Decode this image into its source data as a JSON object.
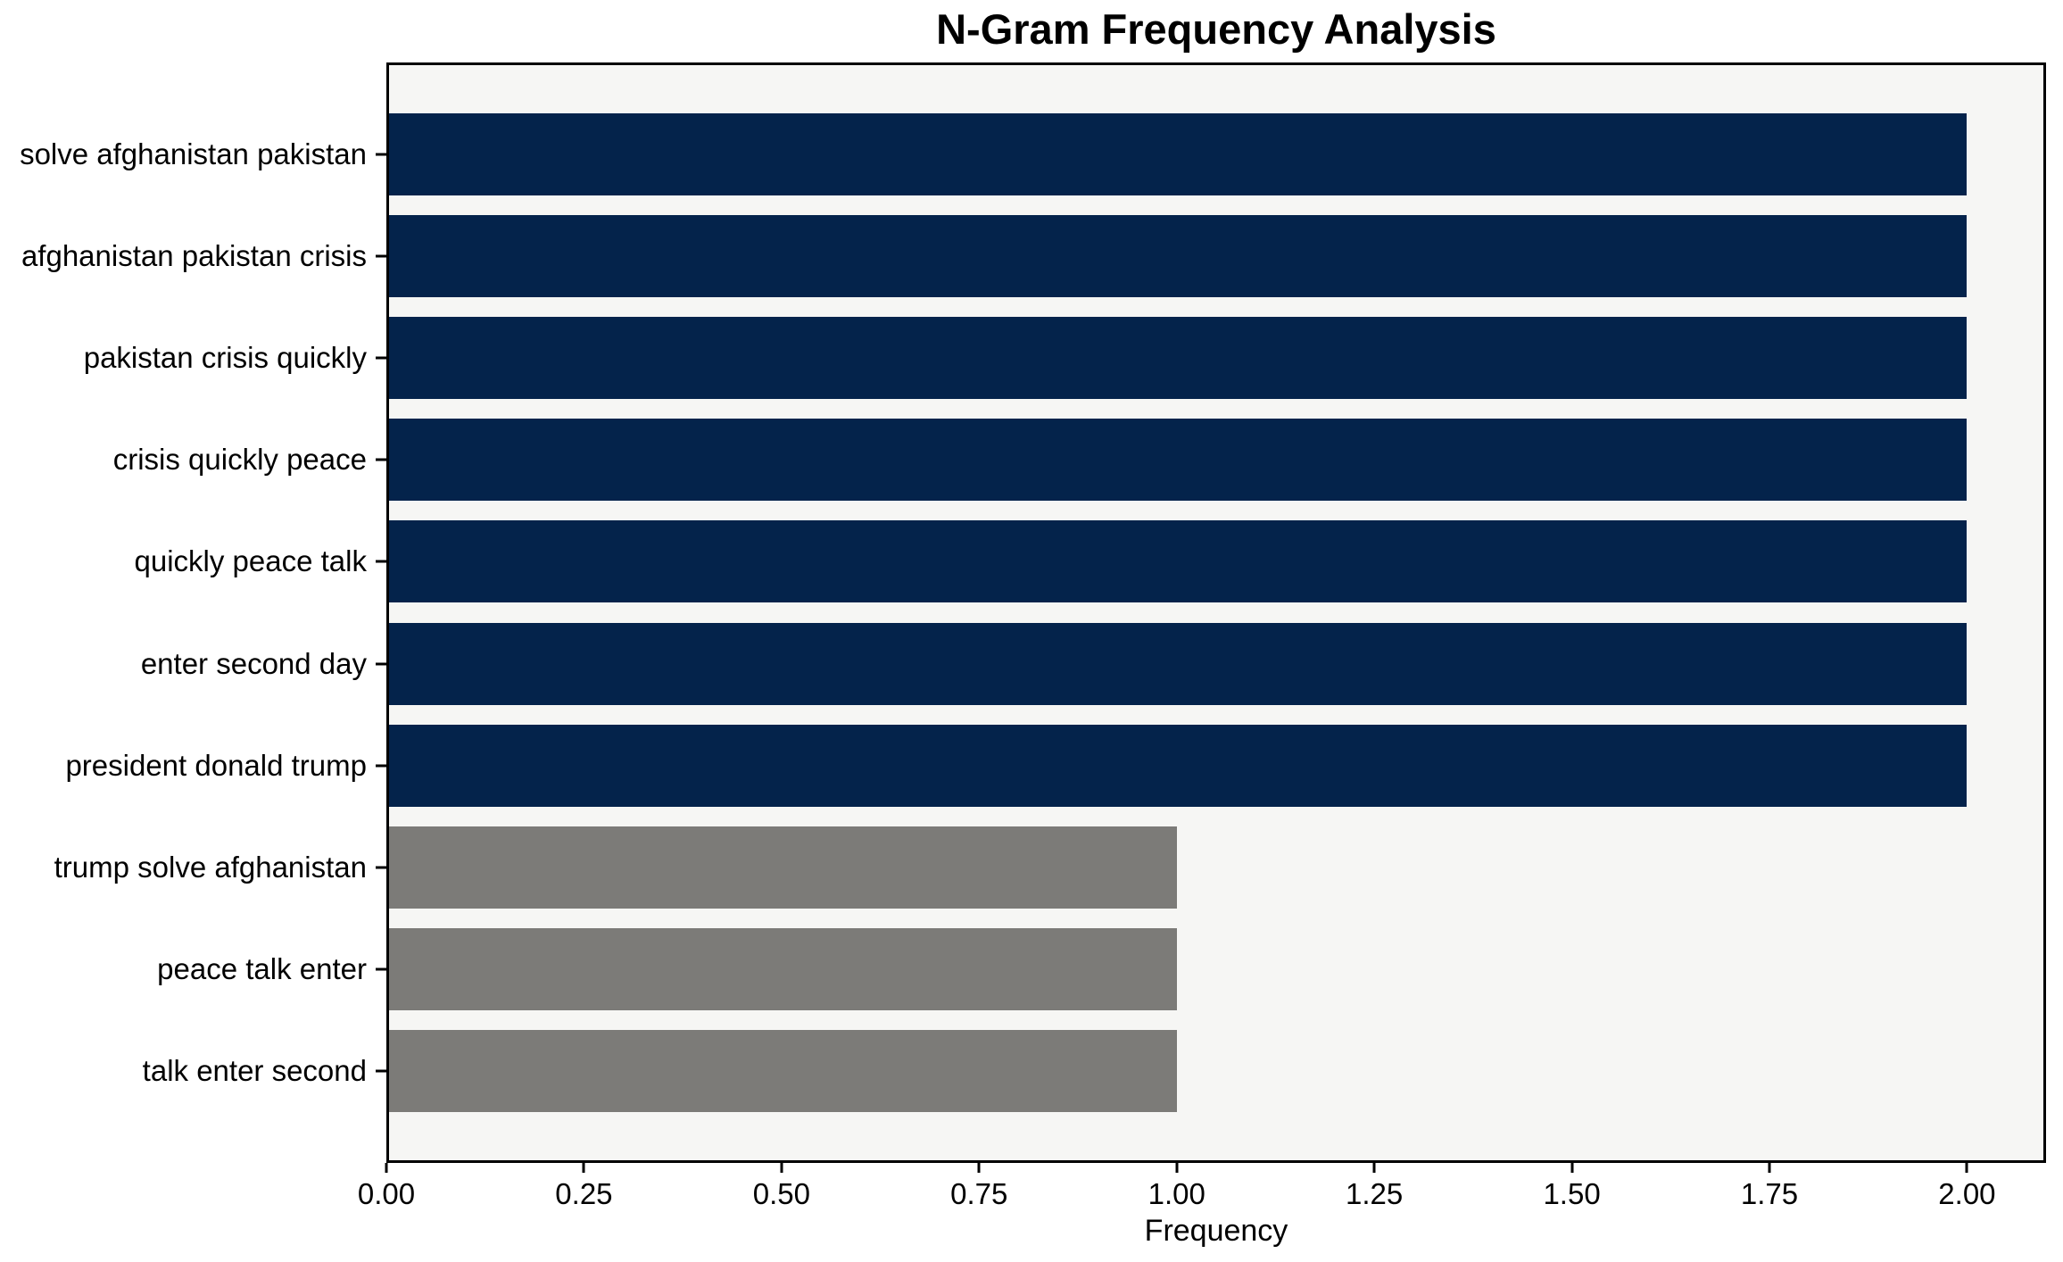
{
  "chart_data": {
    "type": "bar",
    "orientation": "horizontal",
    "title": "N-Gram Frequency Analysis",
    "xlabel": "Frequency",
    "ylabel": "",
    "grid": false,
    "legend": null,
    "xlim": [
      0,
      2.1
    ],
    "categories": [
      "solve afghanistan pakistan",
      "afghanistan pakistan crisis",
      "pakistan crisis quickly",
      "crisis quickly peace",
      "quickly peace talk",
      "enter second day",
      "president donald trump",
      "trump solve afghanistan",
      "peace talk enter",
      "talk enter second"
    ],
    "values": [
      2,
      2,
      2,
      2,
      2,
      2,
      2,
      1,
      1,
      1
    ],
    "bar_colors": [
      "#04234b",
      "#04234b",
      "#04234b",
      "#04234b",
      "#04234b",
      "#04234b",
      "#04234b",
      "#7c7b78",
      "#7c7b78",
      "#7c7b78"
    ],
    "x_ticks": [
      {
        "value": 0.0,
        "label": "0.00"
      },
      {
        "value": 0.25,
        "label": "0.25"
      },
      {
        "value": 0.5,
        "label": "0.50"
      },
      {
        "value": 0.75,
        "label": "0.75"
      },
      {
        "value": 1.0,
        "label": "1.00"
      },
      {
        "value": 1.25,
        "label": "1.25"
      },
      {
        "value": 1.5,
        "label": "1.50"
      },
      {
        "value": 1.75,
        "label": "1.75"
      },
      {
        "value": 2.0,
        "label": "2.00"
      }
    ],
    "colors": {
      "bar_primary": "#04234b",
      "bar_secondary": "#7c7b78",
      "plot_background": "#f6f6f4",
      "figure_background": "#ffffff",
      "spine": "#000000",
      "text": "#000000"
    }
  }
}
